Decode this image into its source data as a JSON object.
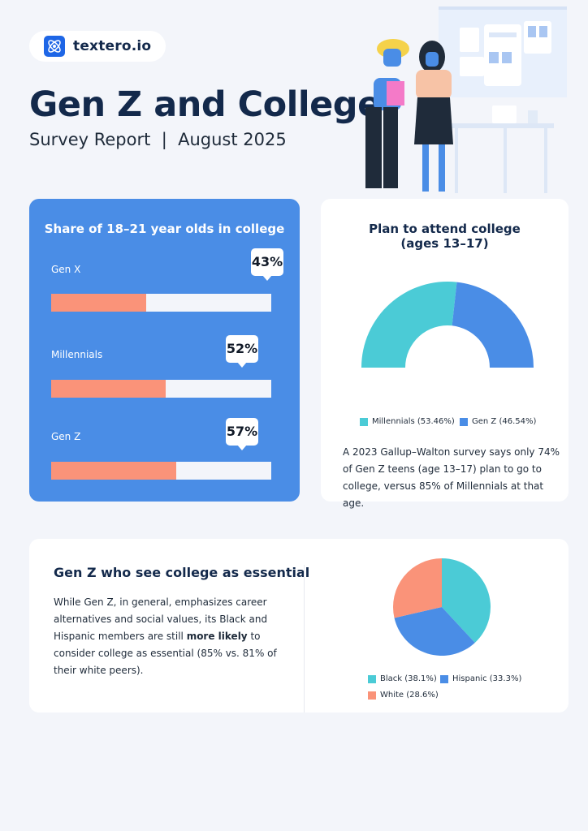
{
  "brand": {
    "name": "textero.io",
    "logo_icon": "atom-icon",
    "color": "#1e66e6"
  },
  "header": {
    "title": "Gen Z and College",
    "subtitle": "Survey Report  |  August 2025"
  },
  "colors": {
    "navy": "#13294b",
    "blue": "#4a8de6",
    "salmon": "#fa9379",
    "teal": "#4bcbd6"
  },
  "chart_data": [
    {
      "type": "bar",
      "orientation": "horizontal",
      "title": "Share of 18–21 year olds in college",
      "categories": [
        "Gen X",
        "Millennials",
        "Gen Z"
      ],
      "values": [
        43,
        52,
        57
      ],
      "value_labels": [
        "43%",
        "52%",
        "57%"
      ],
      "xlim": [
        0,
        100
      ]
    },
    {
      "type": "pie",
      "style": "half-donut",
      "title_lines": [
        "Plan to attend college",
        "(ages 13–17)"
      ],
      "categories": [
        "Millennials",
        "Gen Z"
      ],
      "values": [
        53.46,
        46.54
      ],
      "legend_labels": [
        "Millennials (53.46%)",
        "Gen Z (46.54%)"
      ],
      "colors": [
        "#4bcbd6",
        "#4a8de6"
      ],
      "legend": "bottom"
    },
    {
      "type": "pie",
      "categories": [
        "Black",
        "Hispanic",
        "White"
      ],
      "values": [
        38.1,
        33.3,
        28.6
      ],
      "legend_labels": [
        "Black (38.1%)",
        "Hispanic (33.3%)",
        "White (28.6%)"
      ],
      "colors": [
        "#4bcbd6",
        "#4a8de6",
        "#fa9379"
      ],
      "legend": "bottom"
    }
  ],
  "panel2_note": "A 2023 Gallup–Walton survey says only 74% of Gen Z teens (age 13–17) plan to go to college, versus 85% of Millennials at that age.",
  "panel3": {
    "title": "Gen Z who see college as essential",
    "body_before": "While Gen Z, in general, emphasizes career alternatives and social values, its Black and Hispanic members are still ",
    "body_bold": "more likely",
    "body_after": " to consider college as essential (85% vs. 81% of their white peers)."
  },
  "illustration": {
    "icon": "people-presenting-dashboard-illustration"
  }
}
